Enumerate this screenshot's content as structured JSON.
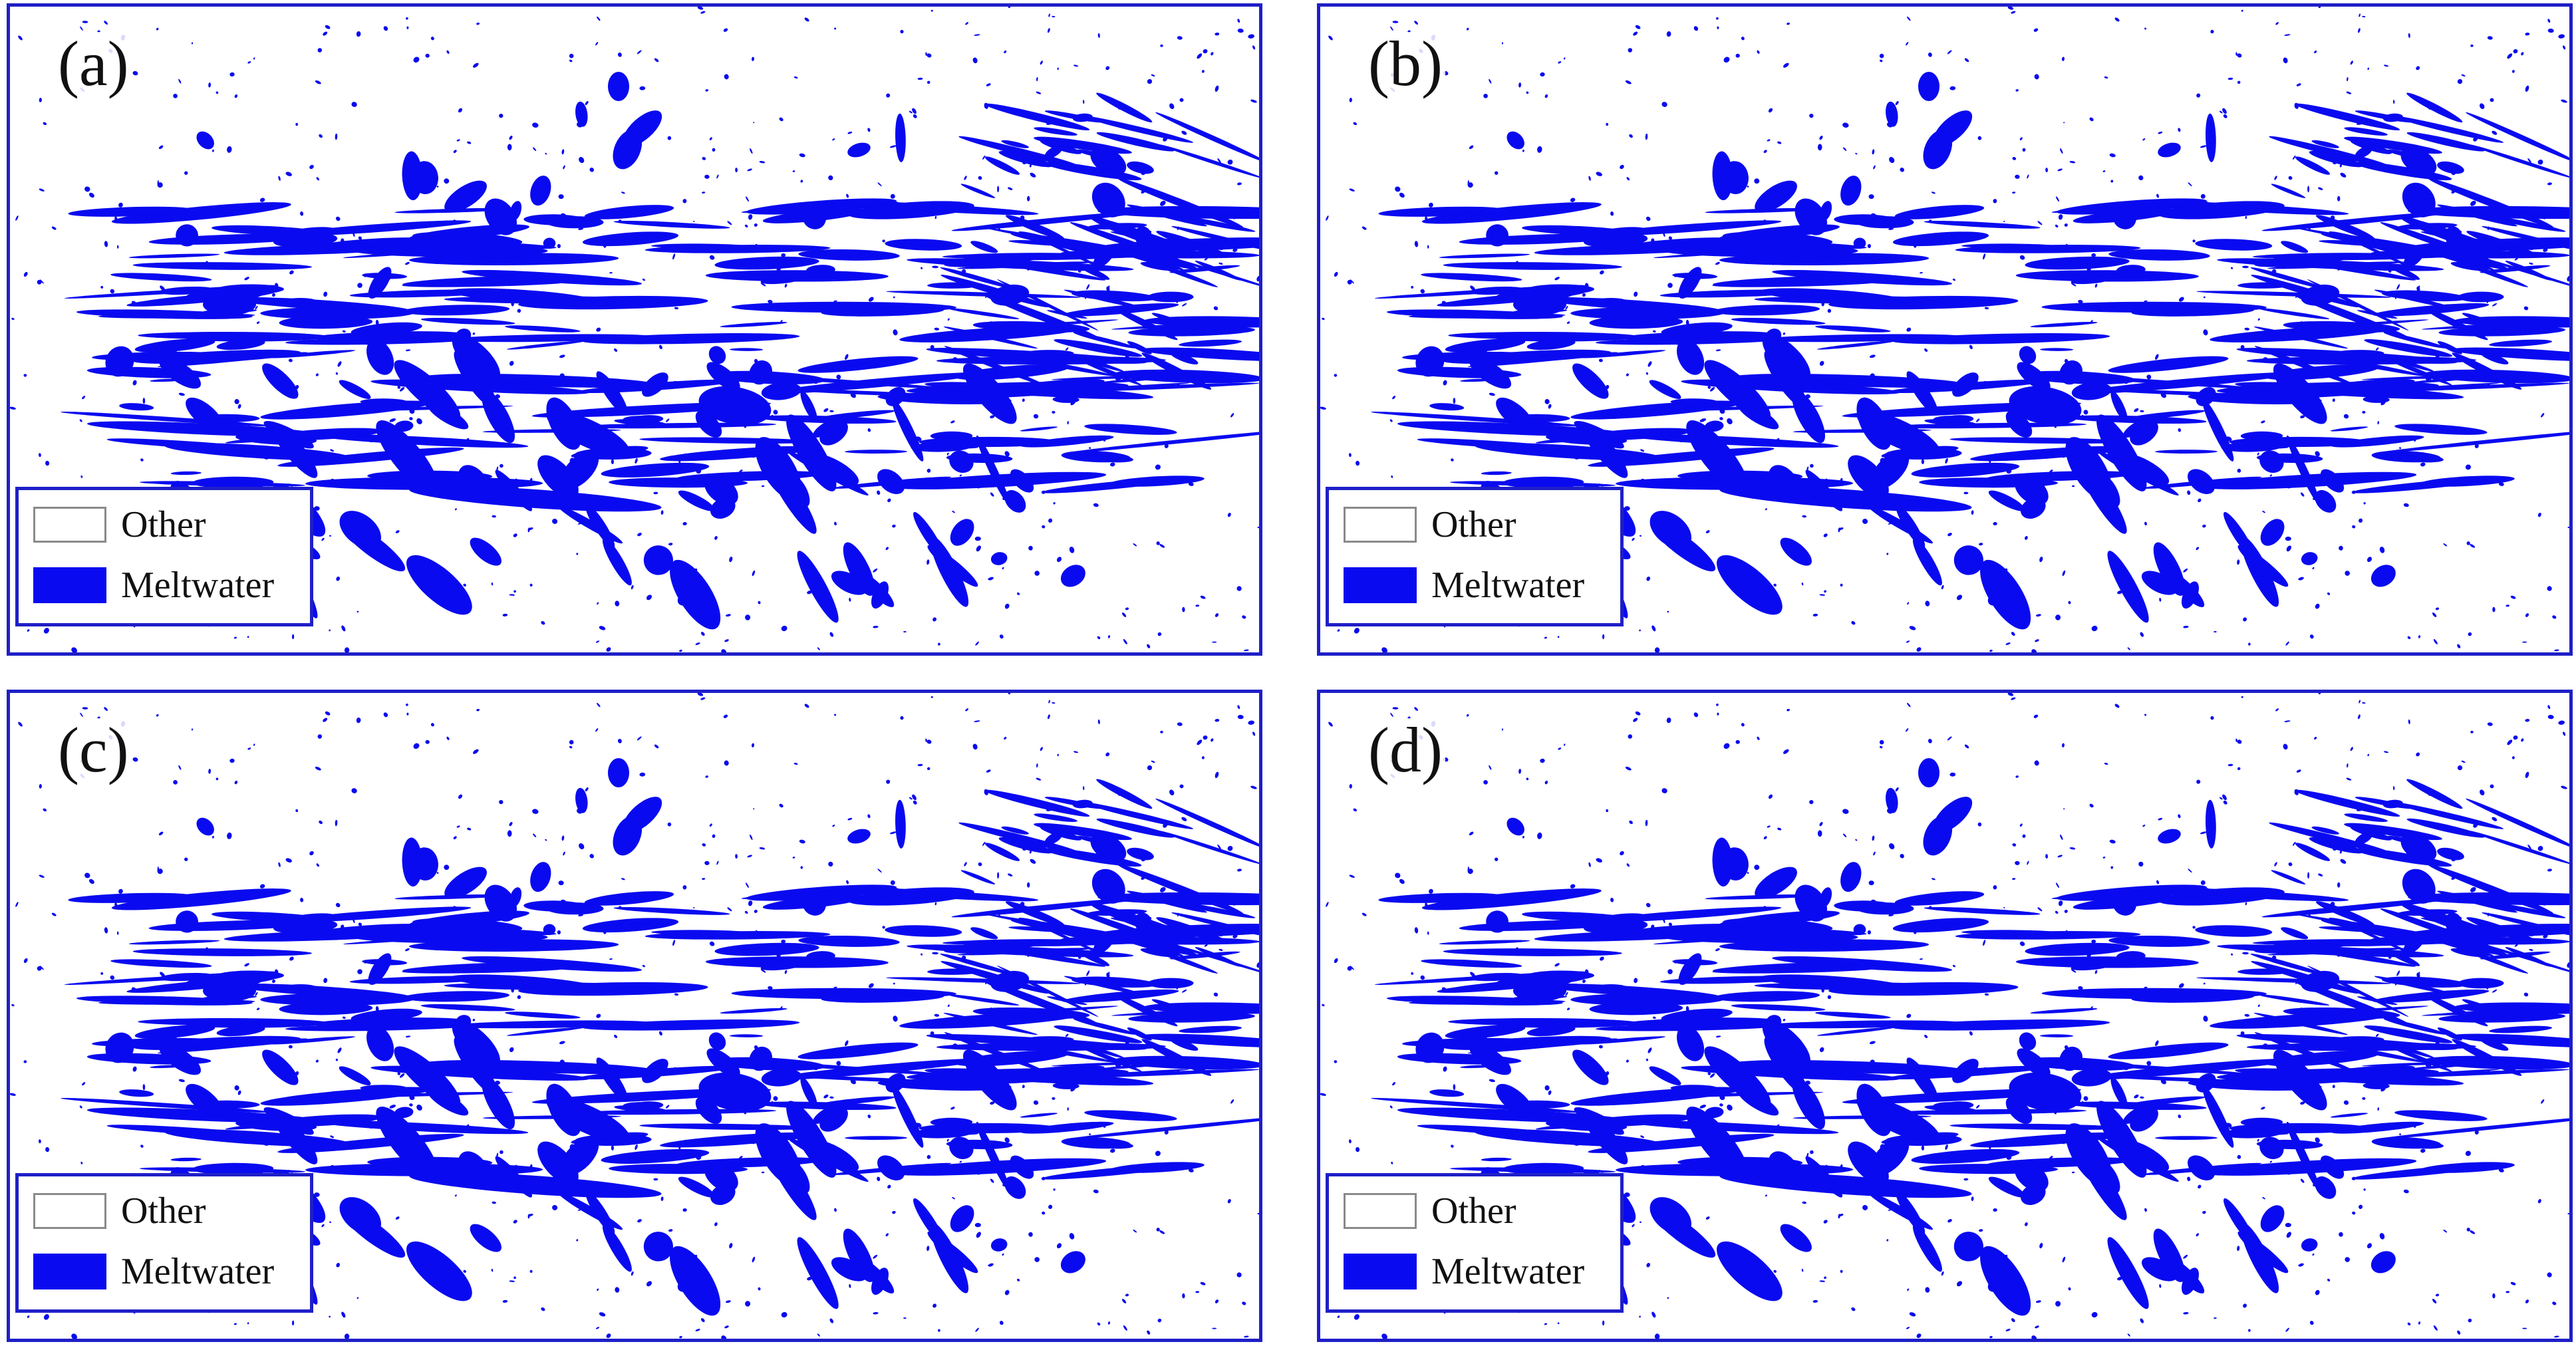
{
  "colors": {
    "meltwater": "#0a0af0",
    "other": "#ffffff",
    "frame": "#1f1fc8"
  },
  "panels": [
    {
      "label": "(a)"
    },
    {
      "label": "(b)"
    },
    {
      "label": "(c)"
    },
    {
      "label": "(d)"
    }
  ],
  "legend": {
    "items": [
      {
        "label": "Other"
      },
      {
        "label": "Meltwater"
      }
    ]
  }
}
